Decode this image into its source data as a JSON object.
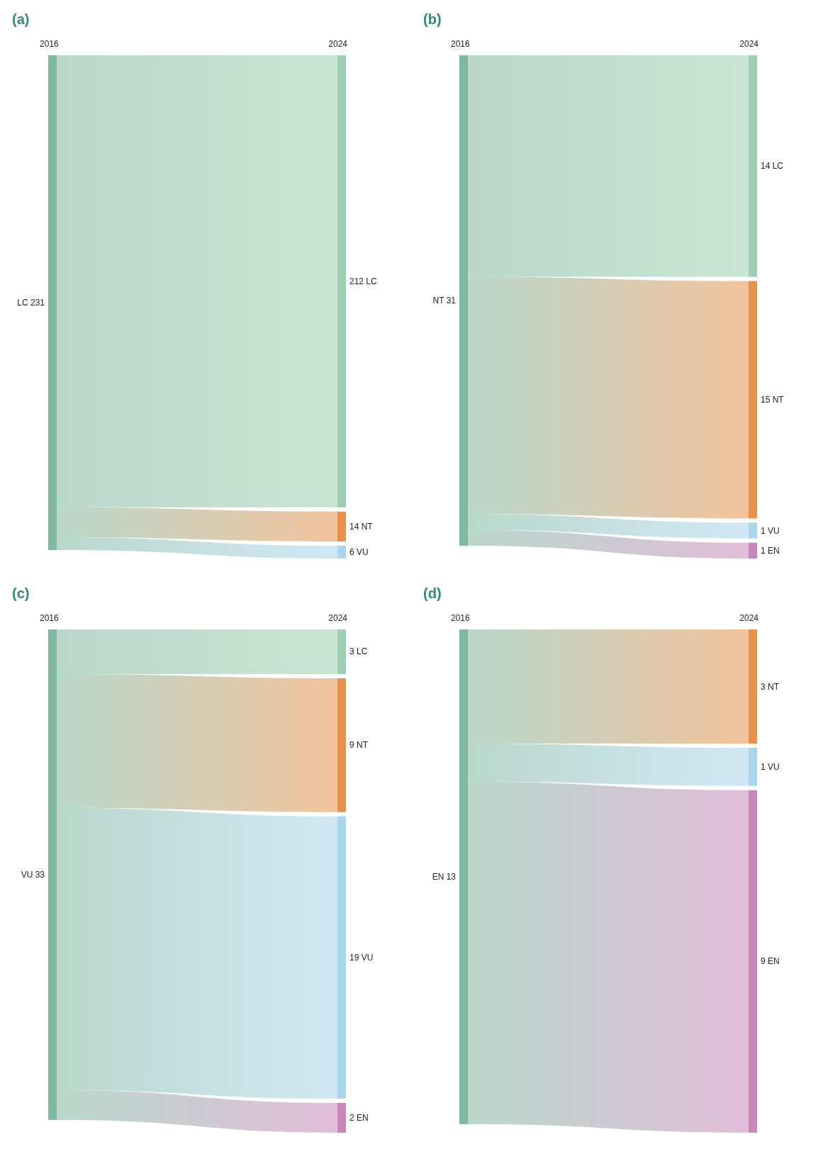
{
  "chart_data": [
    {
      "type": "other",
      "title": "(a)",
      "annotations": [
        "2016",
        "2024",
        "LC 231"
      ],
      "categories": [
        "LC",
        "NT",
        "VU"
      ],
      "values": [
        212,
        14,
        6
      ],
      "data_labels": true,
      "colors": [
        "#9ccfb1",
        "#e8914a",
        "#a9d5ed"
      ]
    },
    {
      "type": "other",
      "title": "(b)",
      "annotations": [
        "2016",
        "2024",
        "NT 31"
      ],
      "categories": [
        "LC",
        "NT",
        "VU",
        "EN"
      ],
      "values": [
        14,
        15,
        1,
        1
      ],
      "data_labels": true,
      "colors": [
        "#9ccfb1",
        "#e8914a",
        "#a9d5ed",
        "#c986b9"
      ]
    },
    {
      "type": "other",
      "title": "(c)",
      "annotations": [
        "2016",
        "2024",
        "VU 33"
      ],
      "categories": [
        "LC",
        "NT",
        "VU",
        "EN"
      ],
      "values": [
        3,
        9,
        19,
        2
      ],
      "data_labels": true,
      "colors": [
        "#9ccfb1",
        "#e8914a",
        "#a9d5ed",
        "#c986b9"
      ]
    },
    {
      "type": "other",
      "title": "(d)",
      "annotations": [
        "2016",
        "2024",
        "EN 13"
      ],
      "categories": [
        "NT",
        "VU",
        "EN"
      ],
      "values": [
        3,
        1,
        9
      ],
      "data_labels": true,
      "colors": [
        "#e8914a",
        "#a9d5ed",
        "#c986b9"
      ]
    }
  ]
}
